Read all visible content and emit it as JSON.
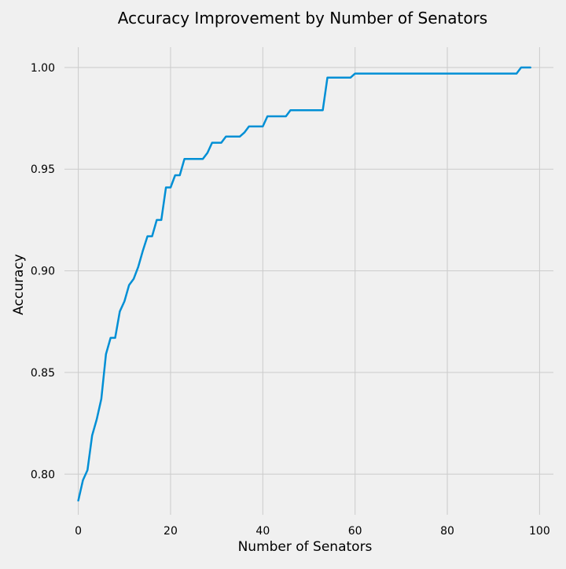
{
  "chart_data": {
    "type": "line",
    "title": "Accuracy Improvement by Number of Senators",
    "xlabel": "Number of Senators",
    "ylabel": "Accuracy",
    "xlim": [
      -3,
      103
    ],
    "ylim": [
      0.78,
      1.01
    ],
    "xticks": [
      0,
      20,
      40,
      60,
      80,
      100
    ],
    "xtick_labels": [
      "0",
      "20",
      "40",
      "60",
      "80",
      "100"
    ],
    "yticks": [
      0.8,
      0.85,
      0.9,
      0.95,
      1.0
    ],
    "ytick_labels": [
      "0.80",
      "0.85",
      "0.90",
      "0.95",
      "1.00"
    ],
    "grid": true,
    "series": [
      {
        "color": "#008fd5",
        "x": [
          0,
          1,
          2,
          3,
          4,
          5,
          6,
          7,
          8,
          9,
          10,
          11,
          12,
          13,
          14,
          15,
          16,
          17,
          18,
          19,
          20,
          21,
          22,
          23,
          24,
          25,
          26,
          27,
          28,
          29,
          30,
          31,
          32,
          33,
          34,
          35,
          36,
          37,
          38,
          39,
          40,
          41,
          42,
          43,
          44,
          45,
          46,
          47,
          48,
          49,
          50,
          51,
          52,
          53,
          54,
          55,
          56,
          57,
          58,
          59,
          60,
          61,
          62,
          63,
          64,
          65,
          66,
          67,
          68,
          69,
          70,
          71,
          72,
          73,
          74,
          75,
          76,
          77,
          78,
          79,
          80,
          81,
          82,
          83,
          84,
          85,
          86,
          87,
          88,
          89,
          90,
          91,
          92,
          93,
          94,
          95,
          96,
          97,
          98
        ],
        "values": [
          0.787,
          0.797,
          0.802,
          0.819,
          0.827,
          0.837,
          0.859,
          0.867,
          0.867,
          0.88,
          0.885,
          0.893,
          0.896,
          0.902,
          0.91,
          0.917,
          0.917,
          0.925,
          0.925,
          0.941,
          0.941,
          0.947,
          0.947,
          0.955,
          0.955,
          0.955,
          0.955,
          0.955,
          0.958,
          0.963,
          0.963,
          0.963,
          0.966,
          0.966,
          0.966,
          0.966,
          0.968,
          0.971,
          0.971,
          0.971,
          0.971,
          0.976,
          0.976,
          0.976,
          0.976,
          0.976,
          0.979,
          0.979,
          0.979,
          0.979,
          0.979,
          0.979,
          0.979,
          0.979,
          0.995,
          0.995,
          0.995,
          0.995,
          0.995,
          0.995,
          0.997,
          0.997,
          0.997,
          0.997,
          0.997,
          0.997,
          0.997,
          0.997,
          0.997,
          0.997,
          0.997,
          0.997,
          0.997,
          0.997,
          0.997,
          0.997,
          0.997,
          0.997,
          0.997,
          0.997,
          0.997,
          0.997,
          0.997,
          0.997,
          0.997,
          0.997,
          0.997,
          0.997,
          0.997,
          0.997,
          0.997,
          0.997,
          0.997,
          0.997,
          0.997,
          0.997,
          1.0,
          1.0,
          1.0
        ]
      }
    ]
  }
}
